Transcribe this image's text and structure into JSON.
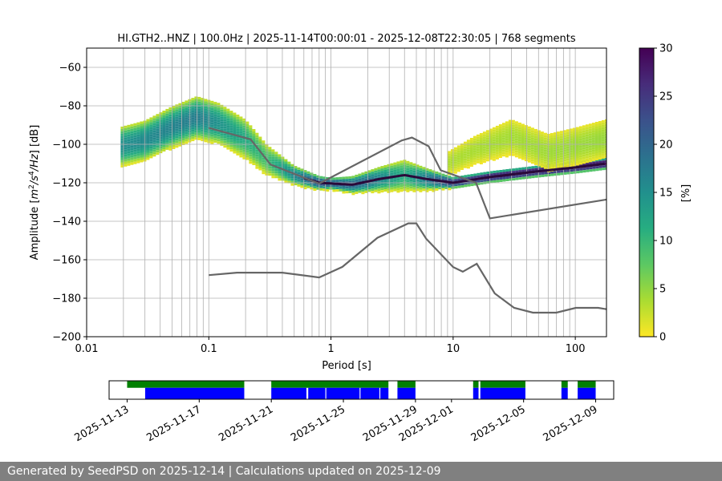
{
  "chart_data": {
    "type": "heatmap",
    "title": "HI.GTH2..HNZ | 100.0Hz | 2025-11-14T00:00:01 - 2025-12-08T22:30:05 | 768 segments",
    "xlabel": "Period [s]",
    "ylabel": "Amplitude [$m^2/s^4/Hz$] [dB]",
    "ylabel_parts": {
      "pre": "Amplitude [",
      "m": "m",
      "two": "2",
      "s": "/s",
      "four": "4",
      "hz": "/Hz",
      "post": "] [dB]"
    },
    "x_scale": "log",
    "xlim": [
      0.01,
      180
    ],
    "ylim": [
      -200,
      -50
    ],
    "x_ticks": [
      {
        "value": 0.01,
        "label": "0.01"
      },
      {
        "value": 0.1,
        "label": "0.1"
      },
      {
        "value": 1,
        "label": "1"
      },
      {
        "value": 10,
        "label": "10"
      },
      {
        "value": 100,
        "label": "100"
      }
    ],
    "y_ticks": [
      {
        "value": -60,
        "label": "−60"
      },
      {
        "value": -80,
        "label": "−80"
      },
      {
        "value": -100,
        "label": "−100"
      },
      {
        "value": -120,
        "label": "−120"
      },
      {
        "value": -140,
        "label": "−140"
      },
      {
        "value": -160,
        "label": "−160"
      },
      {
        "value": -180,
        "label": "−180"
      },
      {
        "value": -200,
        "label": "−200"
      }
    ],
    "grid_periods": [
      0.02,
      0.03,
      0.04,
      0.05,
      0.06,
      0.07,
      0.08,
      0.09,
      0.2,
      0.3,
      0.4,
      0.5,
      0.6,
      0.7,
      0.8,
      0.9,
      2,
      3,
      4,
      5,
      6,
      7,
      8,
      9,
      20,
      30,
      40,
      50,
      60,
      70,
      80,
      90
    ],
    "grid_levels": [
      -180,
      -160,
      -140,
      -120,
      -100,
      -80,
      -60
    ],
    "density_bands": [
      {
        "name": "main",
        "period_range": [
          0.019,
          180
        ],
        "center": [
          [
            0.019,
            -101
          ],
          [
            0.03,
            -98
          ],
          [
            0.05,
            -91
          ],
          [
            0.08,
            -86
          ],
          [
            0.12,
            -89
          ],
          [
            0.2,
            -97
          ],
          [
            0.3,
            -108
          ],
          [
            0.5,
            -116
          ],
          [
            0.8,
            -120
          ],
          [
            1.5,
            -121
          ],
          [
            2.5,
            -118
          ],
          [
            4,
            -116
          ],
          [
            6,
            -118
          ],
          [
            10,
            -120
          ],
          [
            20,
            -117
          ],
          [
            50,
            -114
          ],
          [
            100,
            -112
          ],
          [
            180,
            -110
          ]
        ],
        "halfwidth": [
          [
            0.019,
            10
          ],
          [
            0.08,
            11
          ],
          [
            0.2,
            10
          ],
          [
            0.5,
            5
          ],
          [
            1,
            3
          ],
          [
            4,
            8
          ],
          [
            10,
            3
          ],
          [
            40,
            3
          ],
          [
            180,
            3
          ]
        ],
        "peak_percent": [
          [
            0.019,
            14
          ],
          [
            0.08,
            16
          ],
          [
            0.3,
            8
          ],
          [
            0.8,
            22
          ],
          [
            2,
            18
          ],
          [
            4,
            10
          ],
          [
            10,
            25
          ],
          [
            20,
            28
          ],
          [
            180,
            30
          ]
        ]
      },
      {
        "name": "upper-scatter",
        "period_range": [
          9,
          180
        ],
        "center": [
          [
            9,
            -110
          ],
          [
            15,
            -103
          ],
          [
            30,
            -96
          ],
          [
            60,
            -104
          ],
          [
            100,
            -101
          ],
          [
            180,
            -97
          ]
        ],
        "halfwidth": [
          [
            9,
            6
          ],
          [
            30,
            9
          ],
          [
            180,
            10
          ]
        ],
        "peak_percent": [
          [
            9,
            3
          ],
          [
            180,
            4
          ]
        ]
      }
    ],
    "series": [
      {
        "name": "high-noise-model",
        "points": [
          [
            0.1,
            -91.5
          ],
          [
            0.22,
            -97.4
          ],
          [
            0.32,
            -110.5
          ],
          [
            0.8,
            -120.4
          ],
          [
            3.8,
            -98.0
          ],
          [
            4.6,
            -96.5
          ],
          [
            6.3,
            -101.0
          ],
          [
            7.9,
            -113.5
          ],
          [
            15.4,
            -120.0
          ],
          [
            20,
            -138.5
          ],
          [
            180,
            -128.7
          ]
        ]
      },
      {
        "name": "low-noise-model",
        "points": [
          [
            0.1,
            -168.0
          ],
          [
            0.17,
            -166.7
          ],
          [
            0.4,
            -166.7
          ],
          [
            0.8,
            -169.2
          ],
          [
            1.24,
            -163.7
          ],
          [
            2.4,
            -148.6
          ],
          [
            4.3,
            -141.1
          ],
          [
            5,
            -141.1
          ],
          [
            6,
            -149.0
          ],
          [
            10,
            -163.8
          ],
          [
            12,
            -166.2
          ],
          [
            15.6,
            -162.1
          ],
          [
            21.9,
            -177.5
          ],
          [
            31.6,
            -185.0
          ],
          [
            45,
            -187.5
          ],
          [
            70,
            -187.5
          ],
          [
            101,
            -185.0
          ],
          [
            154,
            -185.0
          ],
          [
            180,
            -185.7
          ]
        ]
      }
    ],
    "colorbar": {
      "label": "[%]",
      "range": [
        0,
        30
      ],
      "ticks": [
        {
          "value": 0,
          "label": "0"
        },
        {
          "value": 5,
          "label": "5"
        },
        {
          "value": 10,
          "label": "10"
        },
        {
          "value": 15,
          "label": "15"
        },
        {
          "value": 20,
          "label": "20"
        },
        {
          "value": 25,
          "label": "25"
        },
        {
          "value": 30,
          "label": "30"
        }
      ],
      "colormap": [
        "#440154",
        "#472c7a",
        "#3b518b",
        "#2c718e",
        "#21908d",
        "#27ad81",
        "#5cc863",
        "#aadc32",
        "#fde725"
      ]
    },
    "timeline": {
      "date_range": [
        "2025-11-12",
        "2025-12-10"
      ],
      "date_ticks": [
        {
          "value": "2025-11-13",
          "label": "2025-11-13"
        },
        {
          "value": "2025-11-17",
          "label": "2025-11-17"
        },
        {
          "value": "2025-11-21",
          "label": "2025-11-21"
        },
        {
          "value": "2025-11-25",
          "label": "2025-11-25"
        },
        {
          "value": "2025-11-29",
          "label": "2025-11-29"
        },
        {
          "value": "2025-12-01",
          "label": "2025-12-01"
        },
        {
          "value": "2025-12-05",
          "label": "2025-12-05"
        },
        {
          "value": "2025-12-09",
          "label": "2025-12-09"
        }
      ],
      "green_spans": [
        [
          0.0,
          6.5
        ],
        [
          8.0,
          14.5
        ],
        [
          15.0,
          16.0
        ],
        [
          19.2,
          19.5
        ],
        [
          19.6,
          22.1
        ],
        [
          24.1,
          24.45
        ],
        [
          25.0,
          26.0
        ]
      ],
      "blue_spans": [
        [
          1.0,
          6.5
        ],
        [
          8.0,
          9.95
        ],
        [
          10.05,
          11.0
        ],
        [
          11.05,
          12.9
        ],
        [
          12.95,
          14.0
        ],
        [
          14.05,
          14.5
        ],
        [
          15.0,
          16.0
        ],
        [
          19.2,
          19.5
        ],
        [
          19.6,
          22.1
        ],
        [
          24.1,
          24.45
        ],
        [
          25.0,
          26.0
        ]
      ],
      "span_origin": "2025-11-13",
      "span_units": "days",
      "green_color": "#008000",
      "blue_color": "#0000ff"
    },
    "colors": {
      "model_line": "#666666",
      "grid": "#b0b0b0",
      "trace": "#2a0a3a"
    }
  },
  "footer": {
    "text": "Generated by SeedPSD on 2025-12-14 | Calculations updated on 2025-12-09"
  }
}
